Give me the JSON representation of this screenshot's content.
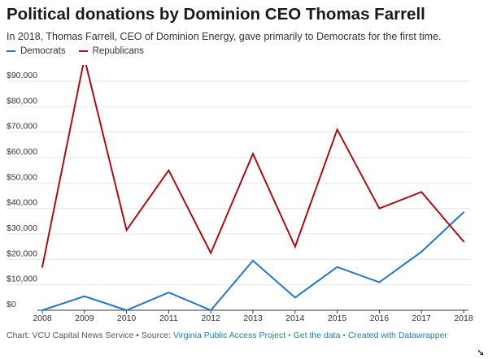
{
  "header": {
    "title": "Political donations by Dominion CEO Thomas Farrell",
    "subtitle": "In 2018, Thomas Farrell, CEO of Dominion Energy, gave primarily to Democrats for the first time."
  },
  "footer": {
    "chart_prefix": "Chart: VCU Capital News Service • Source: ",
    "source_link": "Virginia Public Access Project",
    "sep1": " • ",
    "data_link": "Get the data",
    "sep2": " • ",
    "made_link": "Created with Datawrapper"
  },
  "colors": {
    "democrats": "#1f77c4",
    "republicans": "#a50e16",
    "grid": "#e6e6e6",
    "axis": "#333333"
  },
  "chart_data": {
    "type": "line",
    "title": "Political donations by Dominion CEO Thomas Farrell",
    "subtitle": "In 2018, Thomas Farrell, CEO of Dominion Energy, gave primarily to Democrats for the first time.",
    "xlabel": "",
    "ylabel": "",
    "x": [
      2008,
      2009,
      2010,
      2011,
      2012,
      2013,
      2014,
      2015,
      2016,
      2017,
      2018
    ],
    "xtick_labels": [
      "2008",
      "2009",
      "2010",
      "2011",
      "2012",
      "2013",
      "2014",
      "2015",
      "2016",
      "2017",
      "2018"
    ],
    "ylim": [
      0,
      90000
    ],
    "yticks": [
      0,
      10000,
      20000,
      30000,
      40000,
      50000,
      60000,
      70000,
      80000,
      90000
    ],
    "ytick_labels": [
      "$0",
      "$10,000",
      "$20,000",
      "$30,000",
      "$40,000",
      "$50,000",
      "$60,000",
      "$70,000",
      "$80,000",
      "$90,000"
    ],
    "grid": true,
    "legend_position": "top-left",
    "series": [
      {
        "name": "Democrats",
        "color": "#1f77c4",
        "values": [
          0,
          5500,
          0,
          7000,
          0,
          19500,
          5000,
          17000,
          11000,
          23000,
          38500
        ]
      },
      {
        "name": "Republicans",
        "color": "#a50e16",
        "values": [
          17000,
          99000,
          31500,
          55000,
          22500,
          61500,
          25000,
          71000,
          40000,
          46500,
          27000
        ]
      }
    ]
  }
}
